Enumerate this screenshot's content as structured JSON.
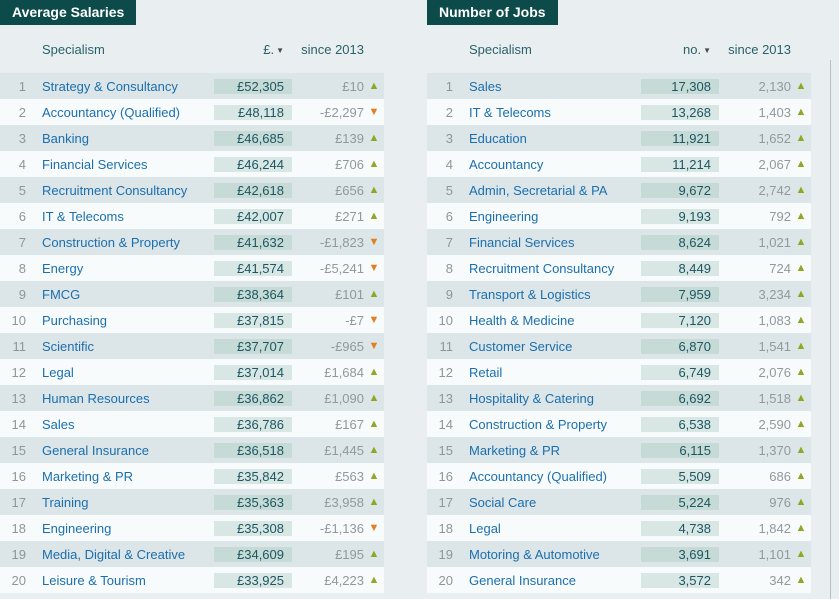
{
  "icons": {
    "sort": "▼",
    "up": "▲",
    "down": "▼"
  },
  "colors": {
    "header_bg": "#0d4b4b",
    "row_odd": "#dce5e7",
    "row_even": "#f8fbfb",
    "value_col_odd": "#c6dad6",
    "value_col_even": "#d9e7e4",
    "link": "#1b6fae",
    "up_arrow": "#8fa824",
    "down_arrow": "#e2801f"
  },
  "chart_data": [
    {
      "type": "table",
      "title": "Average Salaries",
      "columns": {
        "specialism": "Specialism",
        "value": "£.",
        "since": "since 2013"
      },
      "rows": [
        {
          "rank": "1",
          "specialism": "Strategy & Consultancy",
          "value": "£52,305",
          "since": "£10",
          "trend": "up"
        },
        {
          "rank": "2",
          "specialism": "Accountancy (Qualified)",
          "value": "£48,118",
          "since": "-£2,297",
          "trend": "down"
        },
        {
          "rank": "3",
          "specialism": "Banking",
          "value": "£46,685",
          "since": "£139",
          "trend": "up"
        },
        {
          "rank": "4",
          "specialism": "Financial Services",
          "value": "£46,244",
          "since": "£706",
          "trend": "up"
        },
        {
          "rank": "5",
          "specialism": "Recruitment Consultancy",
          "value": "£42,618",
          "since": "£656",
          "trend": "up"
        },
        {
          "rank": "6",
          "specialism": "IT & Telecoms",
          "value": "£42,007",
          "since": "£271",
          "trend": "up"
        },
        {
          "rank": "7",
          "specialism": "Construction & Property",
          "value": "£41,632",
          "since": "-£1,823",
          "trend": "down"
        },
        {
          "rank": "8",
          "specialism": "Energy",
          "value": "£41,574",
          "since": "-£5,241",
          "trend": "down"
        },
        {
          "rank": "9",
          "specialism": "FMCG",
          "value": "£38,364",
          "since": "£101",
          "trend": "up"
        },
        {
          "rank": "10",
          "specialism": "Purchasing",
          "value": "£37,815",
          "since": "-£7",
          "trend": "down"
        },
        {
          "rank": "11",
          "specialism": "Scientific",
          "value": "£37,707",
          "since": "-£965",
          "trend": "down"
        },
        {
          "rank": "12",
          "specialism": "Legal",
          "value": "£37,014",
          "since": "£1,684",
          "trend": "up"
        },
        {
          "rank": "13",
          "specialism": "Human Resources",
          "value": "£36,862",
          "since": "£1,090",
          "trend": "up"
        },
        {
          "rank": "14",
          "specialism": "Sales",
          "value": "£36,786",
          "since": "£167",
          "trend": "up"
        },
        {
          "rank": "15",
          "specialism": "General Insurance",
          "value": "£36,518",
          "since": "£1,445",
          "trend": "up"
        },
        {
          "rank": "16",
          "specialism": "Marketing & PR",
          "value": "£35,842",
          "since": "£563",
          "trend": "up"
        },
        {
          "rank": "17",
          "specialism": "Training",
          "value": "£35,363",
          "since": "£3,958",
          "trend": "up"
        },
        {
          "rank": "18",
          "specialism": "Engineering",
          "value": "£35,308",
          "since": "-£1,136",
          "trend": "down"
        },
        {
          "rank": "19",
          "specialism": "Media, Digital & Creative",
          "value": "£34,609",
          "since": "£195",
          "trend": "up"
        },
        {
          "rank": "20",
          "specialism": "Leisure & Tourism",
          "value": "£33,925",
          "since": "£4,223",
          "trend": "up"
        }
      ]
    },
    {
      "type": "table",
      "title": "Number of Jobs",
      "columns": {
        "specialism": "Specialism",
        "value": "no.",
        "since": "since 2013"
      },
      "rows": [
        {
          "rank": "1",
          "specialism": "Sales",
          "value": "17,308",
          "since": "2,130",
          "trend": "up"
        },
        {
          "rank": "2",
          "specialism": "IT & Telecoms",
          "value": "13,268",
          "since": "1,403",
          "trend": "up"
        },
        {
          "rank": "3",
          "specialism": "Education",
          "value": "11,921",
          "since": "1,652",
          "trend": "up"
        },
        {
          "rank": "4",
          "specialism": "Accountancy",
          "value": "11,214",
          "since": "2,067",
          "trend": "up"
        },
        {
          "rank": "5",
          "specialism": "Admin, Secretarial & PA",
          "value": "9,672",
          "since": "2,742",
          "trend": "up"
        },
        {
          "rank": "6",
          "specialism": "Engineering",
          "value": "9,193",
          "since": "792",
          "trend": "up"
        },
        {
          "rank": "7",
          "specialism": "Financial Services",
          "value": "8,624",
          "since": "1,021",
          "trend": "up"
        },
        {
          "rank": "8",
          "specialism": "Recruitment Consultancy",
          "value": "8,449",
          "since": "724",
          "trend": "up"
        },
        {
          "rank": "9",
          "specialism": "Transport & Logistics",
          "value": "7,959",
          "since": "3,234",
          "trend": "up"
        },
        {
          "rank": "10",
          "specialism": "Health & Medicine",
          "value": "7,120",
          "since": "1,083",
          "trend": "up"
        },
        {
          "rank": "11",
          "specialism": "Customer Service",
          "value": "6,870",
          "since": "1,541",
          "trend": "up"
        },
        {
          "rank": "12",
          "specialism": "Retail",
          "value": "6,749",
          "since": "2,076",
          "trend": "up"
        },
        {
          "rank": "13",
          "specialism": "Hospitality & Catering",
          "value": "6,692",
          "since": "1,518",
          "trend": "up"
        },
        {
          "rank": "14",
          "specialism": "Construction & Property",
          "value": "6,538",
          "since": "2,590",
          "trend": "up"
        },
        {
          "rank": "15",
          "specialism": "Marketing & PR",
          "value": "6,115",
          "since": "1,370",
          "trend": "up"
        },
        {
          "rank": "16",
          "specialism": "Accountancy (Qualified)",
          "value": "5,509",
          "since": "686",
          "trend": "up"
        },
        {
          "rank": "17",
          "specialism": "Social Care",
          "value": "5,224",
          "since": "976",
          "trend": "up"
        },
        {
          "rank": "18",
          "specialism": "Legal",
          "value": "4,738",
          "since": "1,842",
          "trend": "up"
        },
        {
          "rank": "19",
          "specialism": "Motoring & Automotive",
          "value": "3,691",
          "since": "1,101",
          "trend": "up"
        },
        {
          "rank": "20",
          "specialism": "General Insurance",
          "value": "3,572",
          "since": "342",
          "trend": "up"
        }
      ]
    }
  ]
}
